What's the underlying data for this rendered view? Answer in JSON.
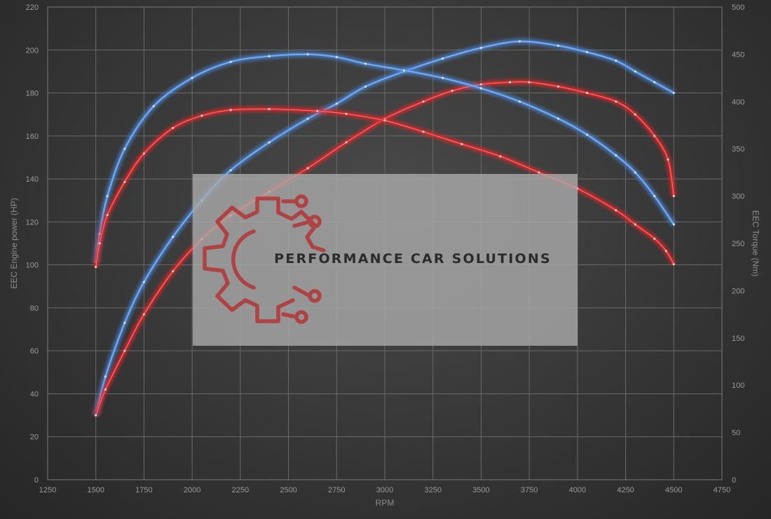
{
  "colors": {
    "stock": "#4f8fe6",
    "tuned": "#e8262b",
    "logo": "#b23a3a",
    "watermark_box": "#a8a8a8"
  },
  "watermark": {
    "text": "PERFORMANCE CAR SOLUTIONS",
    "icon": "gear-circuit-logo-icon"
  },
  "chart_data": {
    "type": "line",
    "title": "",
    "xlabel": "RPM",
    "ylabel_left": "EEC Engine power (HP)",
    "ylabel_right": "EEC Torque (Nm)",
    "xlim": [
      1250,
      4750
    ],
    "x_ticks": [
      1250,
      1500,
      1750,
      2000,
      2250,
      2500,
      2750,
      3000,
      3250,
      3500,
      3750,
      4000,
      4250,
      4500,
      4750
    ],
    "ylim_left": [
      0,
      220
    ],
    "y_ticks_left": [
      0,
      20,
      40,
      60,
      80,
      100,
      120,
      140,
      160,
      180,
      200,
      220
    ],
    "ylim_right": [
      0,
      500
    ],
    "y_ticks_right": [
      0,
      50,
      100,
      150,
      200,
      250,
      300,
      350,
      400,
      450,
      500
    ],
    "grid": true,
    "legend": "none",
    "series": [
      {
        "color": "#4f8fe6",
        "axis": "left",
        "x": [
          1500,
          1550,
          1650,
          1750,
          1900,
          2050,
          2200,
          2400,
          2600,
          2750,
          2900,
          3100,
          3300,
          3500,
          3700,
          3900,
          4050,
          4200,
          4300,
          4400,
          4500
        ],
        "y": [
          30,
          48,
          73,
          92,
          113,
          130,
          144,
          157,
          168,
          175,
          183,
          190,
          196,
          201,
          204,
          202,
          199,
          195,
          190,
          185,
          180
        ]
      },
      {
        "color": "#e8262b",
        "axis": "left",
        "x": [
          1500,
          1550,
          1650,
          1750,
          1900,
          2050,
          2200,
          2400,
          2600,
          2800,
          3000,
          3200,
          3350,
          3500,
          3650,
          3750,
          3900,
          4050,
          4200,
          4300,
          4400,
          4470,
          4500
        ],
        "y": [
          30,
          42,
          60,
          77,
          97,
          112,
          123,
          134,
          145,
          157,
          168,
          176,
          181,
          184,
          185,
          185,
          183,
          180,
          176,
          170,
          160,
          149,
          132
        ]
      },
      {
        "color": "#4f8fe6",
        "axis": "right",
        "x": [
          1500,
          1520,
          1560,
          1650,
          1800,
          2000,
          2200,
          2400,
          2600,
          2750,
          2900,
          3100,
          3300,
          3500,
          3700,
          3900,
          4050,
          4200,
          4300,
          4400,
          4500
        ],
        "y": [
          230,
          260,
          300,
          350,
          395,
          425,
          442,
          448,
          450,
          447,
          440,
          433,
          425,
          414,
          400,
          382,
          365,
          343,
          325,
          300,
          270
        ]
      },
      {
        "color": "#e8262b",
        "axis": "right",
        "x": [
          1500,
          1520,
          1560,
          1650,
          1750,
          1900,
          2050,
          2200,
          2400,
          2650,
          2800,
          3000,
          3200,
          3400,
          3600,
          3800,
          4000,
          4200,
          4300,
          4400,
          4460,
          4500
        ],
        "y": [
          225,
          250,
          280,
          315,
          345,
          372,
          385,
          391,
          392,
          390,
          387,
          380,
          368,
          355,
          342,
          325,
          308,
          285,
          270,
          255,
          242,
          228
        ]
      }
    ]
  }
}
